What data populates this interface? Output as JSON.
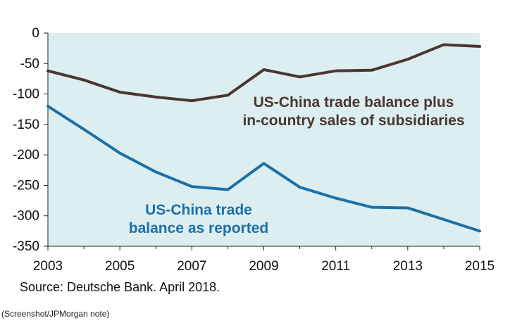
{
  "chart_data": {
    "type": "line",
    "title": "",
    "xlabel": "",
    "ylabel": "",
    "x": [
      2003,
      2004,
      2005,
      2006,
      2007,
      2008,
      2009,
      2010,
      2011,
      2012,
      2013,
      2014,
      2015
    ],
    "xlim": [
      2003,
      2015
    ],
    "ylim": [
      -350,
      0
    ],
    "xticks": [
      "2003",
      "2005",
      "2007",
      "2009",
      "2011",
      "2013",
      "2015"
    ],
    "yticks": [
      "0",
      "-50",
      "-100",
      "-150",
      "-200",
      "-250",
      "-300",
      "-350"
    ],
    "grid": false,
    "series": [
      {
        "name": "US-China trade balance plus in-country sales of subsidiaries",
        "label_lines": [
          "US-China trade balance plus",
          "in-country sales of subsidiaries"
        ],
        "color": "#4a3631",
        "values": [
          -62,
          -77,
          -97,
          -105,
          -111,
          -102,
          -60,
          -72,
          -62,
          -61,
          -43,
          -19,
          -22
        ]
      },
      {
        "name": "US-China trade balance as reported",
        "label_lines": [
          "US-China trade",
          "balance as reported"
        ],
        "color": "#1c70a6",
        "values": [
          -120,
          -158,
          -197,
          -228,
          -252,
          -257,
          -214,
          -253,
          -271,
          -286,
          -287,
          -306,
          -325
        ]
      }
    ],
    "background_color": "#ddeef0"
  },
  "footer": {
    "source": "Source: Deutsche Bank. April 2018.",
    "credit": "(Screenshot/JPMorgan note)"
  }
}
